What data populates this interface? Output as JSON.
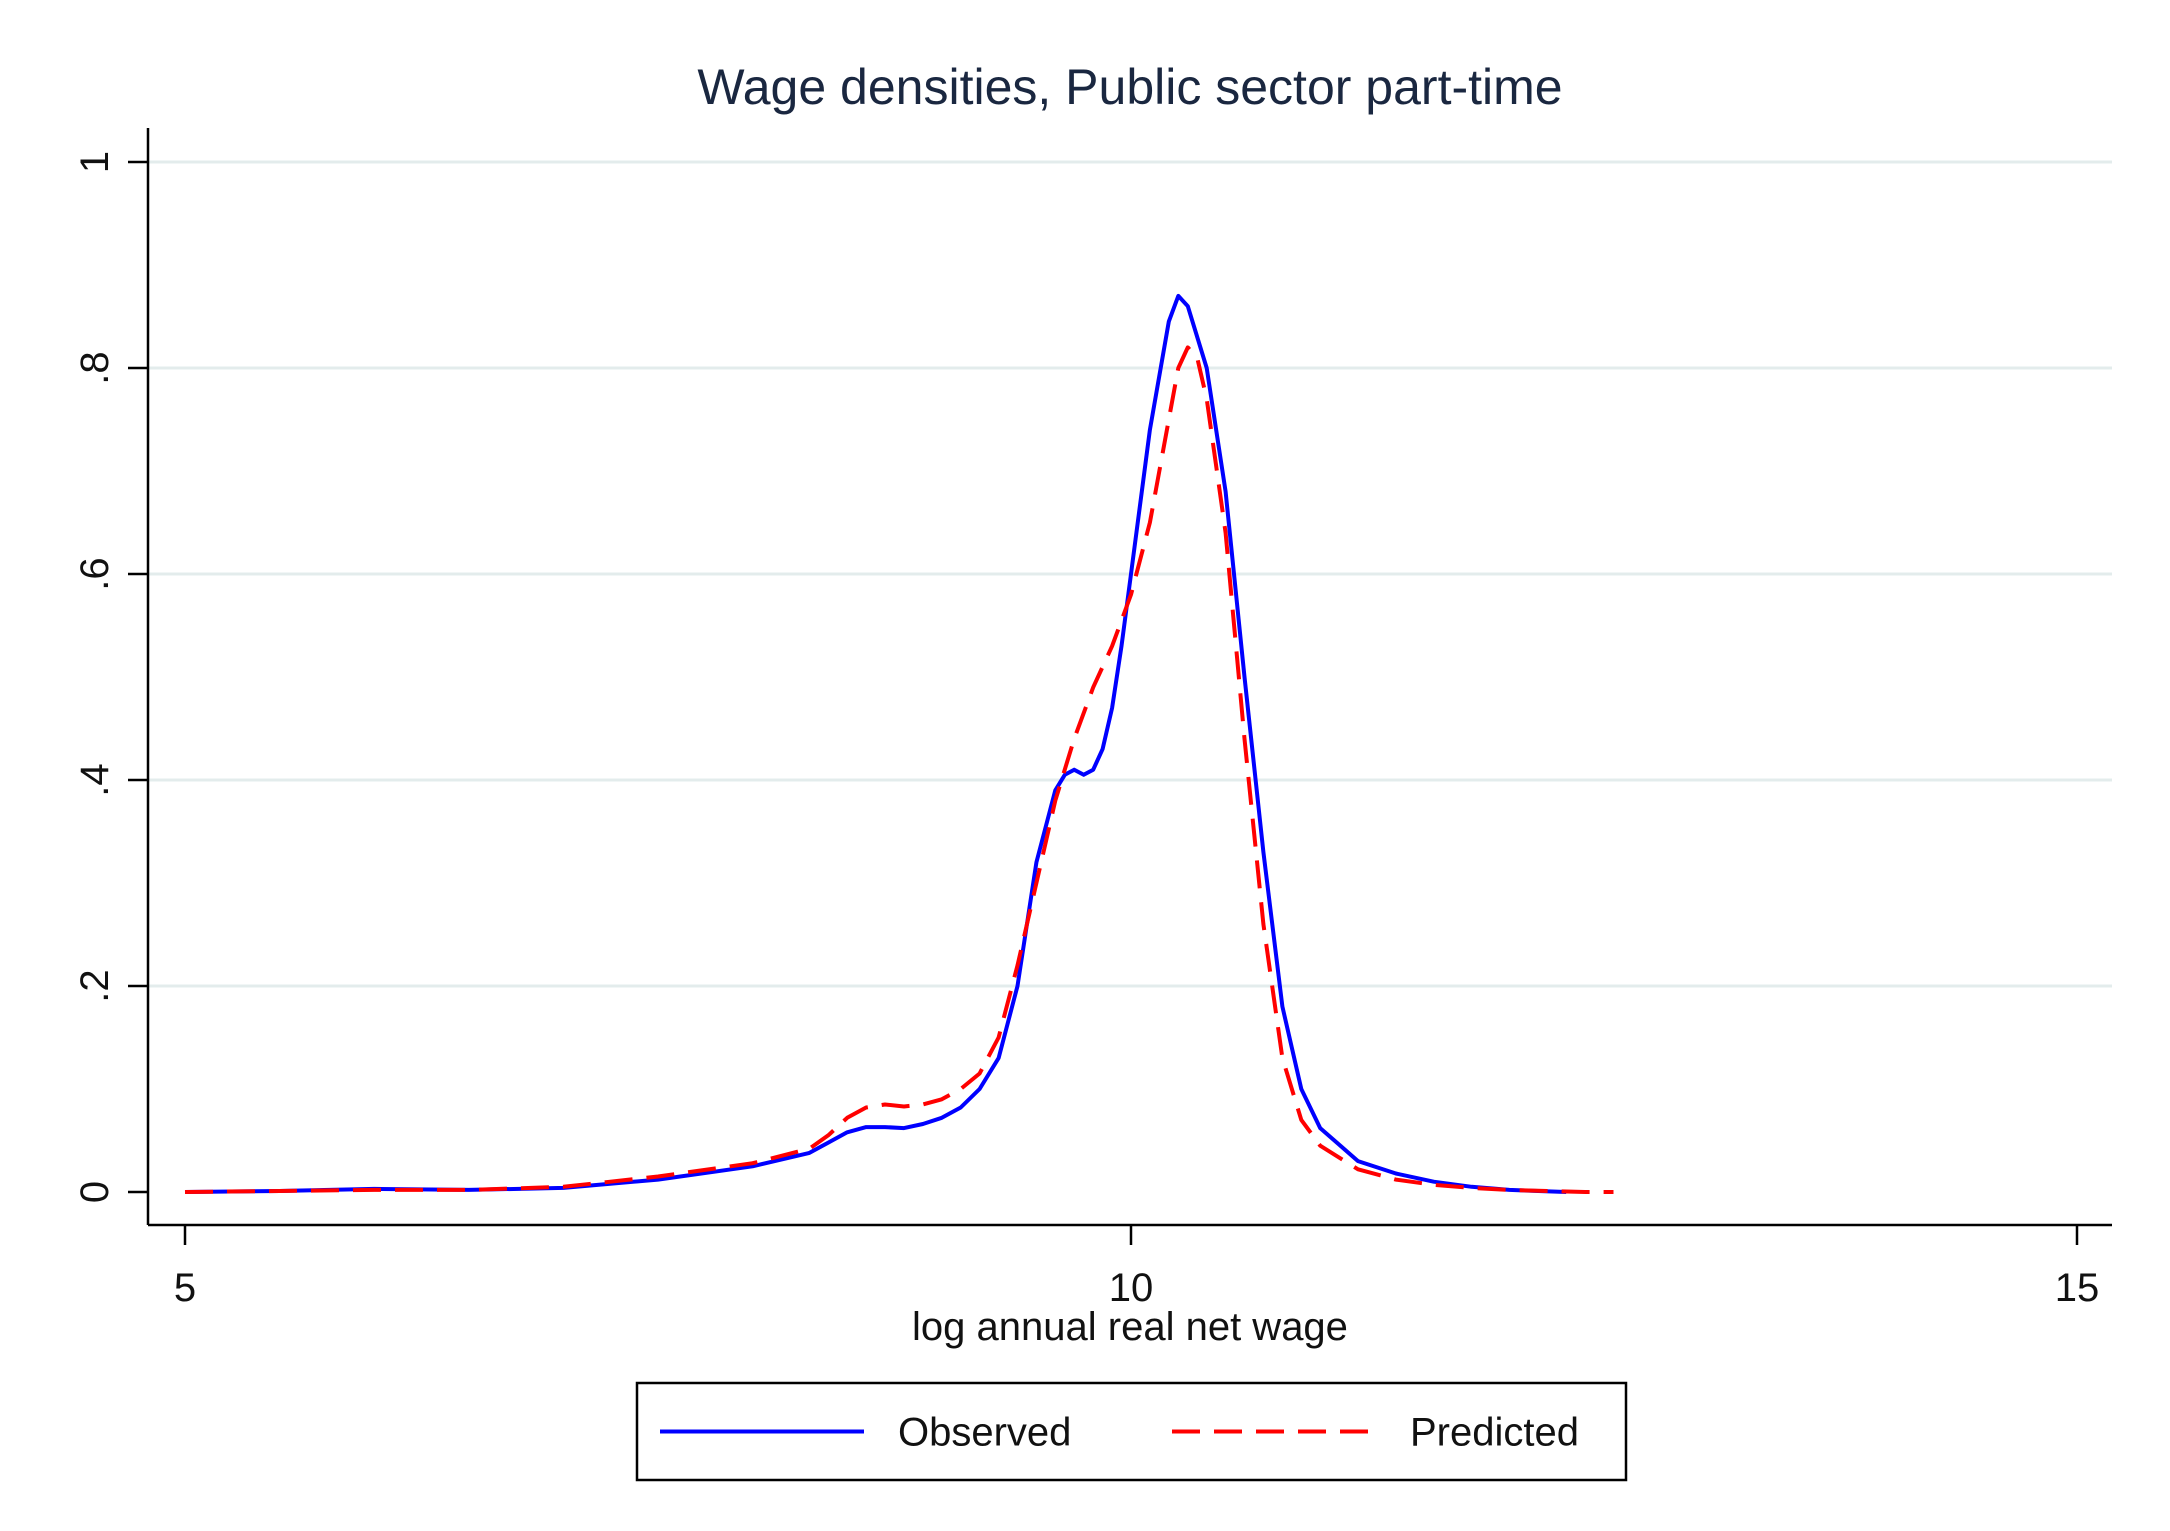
{
  "chart_data": {
    "type": "line",
    "title": "Wage densities, Public sector part-time",
    "xlabel": "log annual real net wage",
    "ylabel": "",
    "xlim": [
      5,
      15
    ],
    "ylim": [
      0,
      1
    ],
    "x_ticks": [
      5,
      10,
      15
    ],
    "x_tick_labels": [
      "5",
      "10",
      "15"
    ],
    "y_ticks": [
      0,
      0.2,
      0.4,
      0.6,
      0.8,
      1
    ],
    "y_tick_labels": [
      "0",
      ".2",
      ".4",
      ".6",
      ".8",
      "1"
    ],
    "grid": "horizontal",
    "legend_position": "bottom",
    "series": [
      {
        "name": "Observed",
        "color": "#0000ff",
        "style": "solid",
        "points": [
          [
            5.0,
            0.0
          ],
          [
            5.5,
            0.001
          ],
          [
            6.0,
            0.003
          ],
          [
            6.5,
            0.002
          ],
          [
            7.0,
            0.004
          ],
          [
            7.5,
            0.012
          ],
          [
            8.0,
            0.025
          ],
          [
            8.3,
            0.038
          ],
          [
            8.4,
            0.048
          ],
          [
            8.5,
            0.058
          ],
          [
            8.6,
            0.063
          ],
          [
            8.7,
            0.063
          ],
          [
            8.8,
            0.062
          ],
          [
            8.9,
            0.066
          ],
          [
            9.0,
            0.072
          ],
          [
            9.1,
            0.082
          ],
          [
            9.2,
            0.1
          ],
          [
            9.3,
            0.13
          ],
          [
            9.4,
            0.2
          ],
          [
            9.5,
            0.32
          ],
          [
            9.6,
            0.39
          ],
          [
            9.65,
            0.405
          ],
          [
            9.7,
            0.41
          ],
          [
            9.75,
            0.405
          ],
          [
            9.8,
            0.41
          ],
          [
            9.85,
            0.43
          ],
          [
            9.9,
            0.47
          ],
          [
            9.95,
            0.53
          ],
          [
            10.0,
            0.6
          ],
          [
            10.1,
            0.74
          ],
          [
            10.2,
            0.845
          ],
          [
            10.25,
            0.87
          ],
          [
            10.3,
            0.86
          ],
          [
            10.4,
            0.8
          ],
          [
            10.5,
            0.68
          ],
          [
            10.6,
            0.5
          ],
          [
            10.7,
            0.33
          ],
          [
            10.8,
            0.18
          ],
          [
            10.9,
            0.1
          ],
          [
            11.0,
            0.062
          ],
          [
            11.2,
            0.03
          ],
          [
            11.4,
            0.018
          ],
          [
            11.6,
            0.01
          ],
          [
            11.8,
            0.005
          ],
          [
            12.0,
            0.002
          ],
          [
            12.3,
            0.0
          ]
        ]
      },
      {
        "name": "Predicted",
        "color": "#ff0000",
        "style": "dashed",
        "points": [
          [
            5.0,
            0.0
          ],
          [
            5.5,
            0.001
          ],
          [
            6.0,
            0.002
          ],
          [
            6.5,
            0.002
          ],
          [
            7.0,
            0.005
          ],
          [
            7.5,
            0.015
          ],
          [
            8.0,
            0.028
          ],
          [
            8.3,
            0.042
          ],
          [
            8.4,
            0.055
          ],
          [
            8.5,
            0.072
          ],
          [
            8.6,
            0.082
          ],
          [
            8.7,
            0.085
          ],
          [
            8.8,
            0.083
          ],
          [
            8.9,
            0.085
          ],
          [
            9.0,
            0.09
          ],
          [
            9.1,
            0.1
          ],
          [
            9.2,
            0.115
          ],
          [
            9.3,
            0.15
          ],
          [
            9.4,
            0.22
          ],
          [
            9.5,
            0.3
          ],
          [
            9.6,
            0.38
          ],
          [
            9.7,
            0.44
          ],
          [
            9.8,
            0.49
          ],
          [
            9.9,
            0.53
          ],
          [
            10.0,
            0.58
          ],
          [
            10.1,
            0.65
          ],
          [
            10.2,
            0.75
          ],
          [
            10.25,
            0.8
          ],
          [
            10.3,
            0.82
          ],
          [
            10.35,
            0.81
          ],
          [
            10.4,
            0.77
          ],
          [
            10.5,
            0.64
          ],
          [
            10.6,
            0.44
          ],
          [
            10.7,
            0.26
          ],
          [
            10.8,
            0.13
          ],
          [
            10.9,
            0.07
          ],
          [
            11.0,
            0.045
          ],
          [
            11.2,
            0.022
          ],
          [
            11.4,
            0.012
          ],
          [
            11.6,
            0.007
          ],
          [
            11.8,
            0.004
          ],
          [
            12.0,
            0.002
          ],
          [
            12.2,
            0.001
          ],
          [
            12.4,
            0.0
          ],
          [
            12.55,
            0.0
          ]
        ]
      }
    ],
    "legend": {
      "items": [
        {
          "label": "Observed",
          "color": "#0000ff",
          "style": "solid"
        },
        {
          "label": "Predicted",
          "color": "#ff0000",
          "style": "dashed"
        }
      ]
    }
  }
}
